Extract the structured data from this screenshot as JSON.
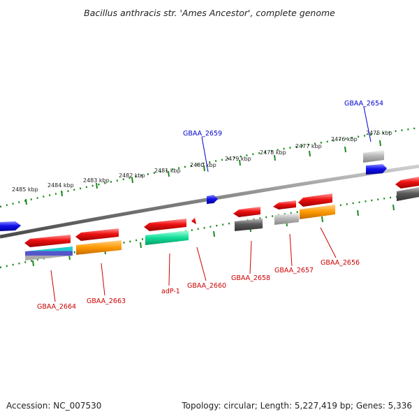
{
  "title": "Bacillus anthracis str. 'Ames Ancestor', complete genome",
  "footer": {
    "accession": "Accession: NC_007530",
    "topology": "Topology: circular; Length: 5,227,419 bp; Genes: 5,336"
  },
  "colors": {
    "backbone": "#7f7f7f",
    "tick": "#1a8a1a",
    "gene_red": "#ee1111",
    "gene_blue": "#1111ee",
    "gene_grey_dark": "#5a5a5a",
    "gene_grey_light": "#b8b8b8",
    "orange": "#ff9900",
    "teal": "#11dd99",
    "label_reverse": "#cc0000",
    "label_forward": "#0000cc"
  },
  "scale_labels": [
    "2485 kbp",
    "2484 kbp",
    "2483 kbp",
    "2482 kbp",
    "2481 kbp",
    "2480 kbp",
    "2479 kbp",
    "2478 kbp",
    "2477 kbp",
    "2476 kbp",
    "2475 kbp"
  ],
  "gene_labels": [
    {
      "name": "GBAA_2654",
      "strand": "forward"
    },
    {
      "name": "GBAA_2659",
      "strand": "forward"
    },
    {
      "name": "GBAA_2656",
      "strand": "reverse"
    },
    {
      "name": "GBAA_2657",
      "strand": "reverse"
    },
    {
      "name": "GBAA_2658",
      "strand": "reverse"
    },
    {
      "name": "GBAA_2660",
      "strand": "reverse"
    },
    {
      "name": "adP-1",
      "strand": "reverse"
    },
    {
      "name": "GBAA_2663",
      "strand": "reverse"
    },
    {
      "name": "GBAA_2664",
      "strand": "reverse"
    }
  ]
}
